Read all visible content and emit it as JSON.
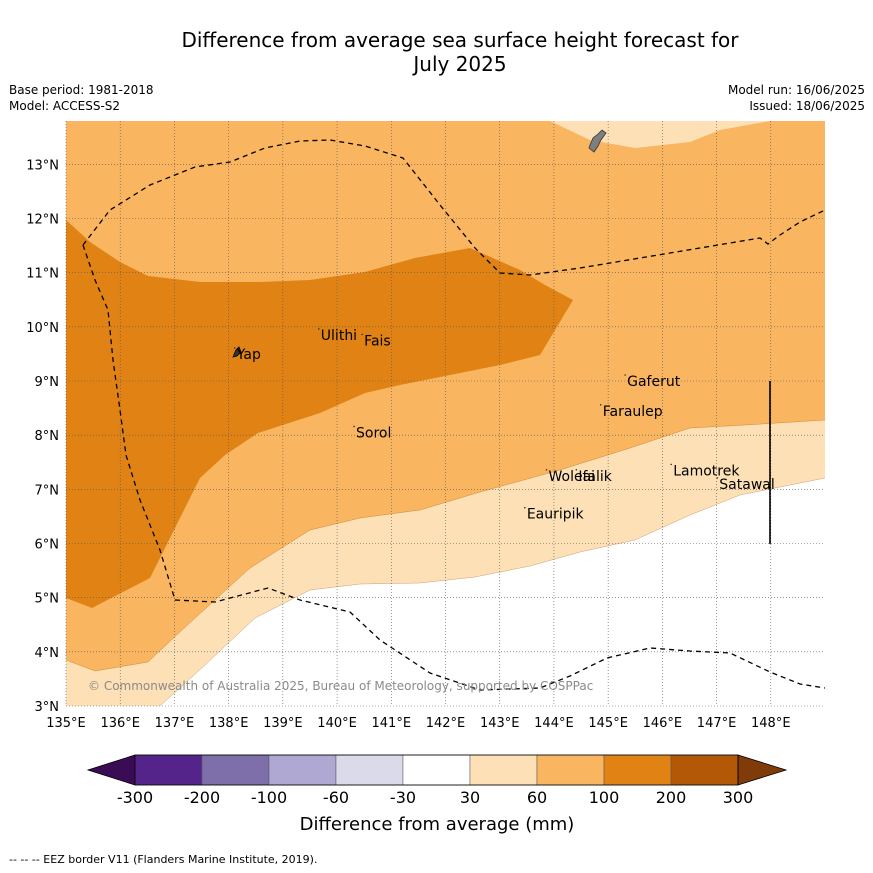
{
  "title_line1": "Difference from average sea surface height forecast for",
  "title_line2": "July 2025",
  "meta": {
    "base_period": "Base period: 1981-2018",
    "model": "Model: ACCESS-S2",
    "model_run": "Model run: 16/06/2025",
    "issued": "Issued: 18/06/2025"
  },
  "map": {
    "lon_range": [
      135,
      149
    ],
    "lat_range": [
      3,
      13.8
    ],
    "lon_ticks": [
      "135°E",
      "136°E",
      "137°E",
      "138°E",
      "139°E",
      "140°E",
      "141°E",
      "142°E",
      "143°E",
      "144°E",
      "145°E",
      "146°E",
      "147°E",
      "148°E"
    ],
    "lat_ticks": [
      "3°N",
      "4°N",
      "5°N",
      "6°N",
      "7°N",
      "8°N",
      "9°N",
      "10°N",
      "11°N",
      "12°N",
      "13°N"
    ],
    "places": [
      {
        "name": "Yap",
        "lon": 138.15,
        "lat": 9.5
      },
      {
        "name": "Ulithi",
        "lon": 139.7,
        "lat": 9.85
      },
      {
        "name": "Fais",
        "lon": 140.5,
        "lat": 9.75
      },
      {
        "name": "Gaferut",
        "lon": 145.35,
        "lat": 9.0
      },
      {
        "name": "Faraulep",
        "lon": 144.9,
        "lat": 8.45
      },
      {
        "name": "Sorol",
        "lon": 140.35,
        "lat": 8.05
      },
      {
        "name": "Woleai",
        "lon": 143.9,
        "lat": 7.25
      },
      {
        "name": "Ifalik",
        "lon": 144.45,
        "lat": 7.25
      },
      {
        "name": "Lamotrek",
        "lon": 146.2,
        "lat": 7.35
      },
      {
        "name": "Satawal",
        "lon": 147.05,
        "lat": 7.1
      },
      {
        "name": "Eauripik",
        "lon": 143.5,
        "lat": 6.55
      }
    ],
    "copyright": "© Commonwealth of Australia 2025, Bureau of Meteorology, supported by COSPPac"
  },
  "legend": {
    "ticks": [
      "-300",
      "-200",
      "-100",
      "-60",
      "-30",
      "30",
      "60",
      "100",
      "200",
      "300"
    ],
    "colors": [
      "#3a0c55",
      "#54248b",
      "#7e6fab",
      "#afa8d2",
      "#dadaeb",
      "#ffffff",
      "#fee0b6",
      "#f9b560",
      "#e08214",
      "#b35806",
      "#7f3b08"
    ],
    "label": "Difference from average (mm)"
  },
  "footnote": "--  --  -- EEZ border V11 (Flanders Marine Institute, 2019)."
}
